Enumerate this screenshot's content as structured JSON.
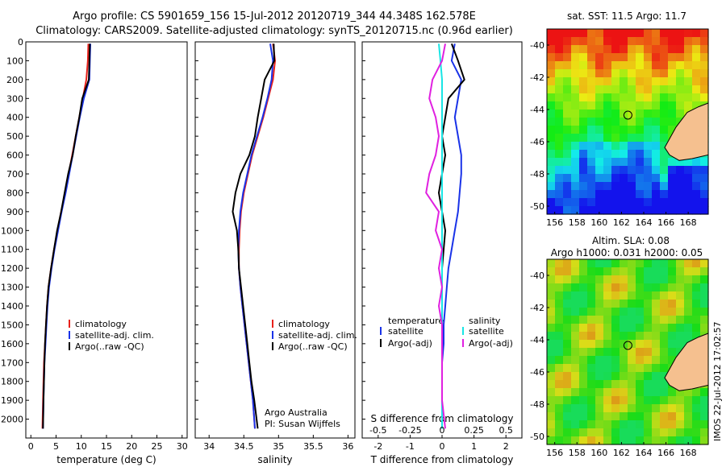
{
  "header": {
    "line1": "Argo profile: CS 5901659_156 15-Jul-2012 20120719_344 44.348S 162.578E",
    "line2": "Climatology: CARS2009. Satellite-adjusted climatology: synTS_20120715.nc (0.96d earlier)"
  },
  "right_top": {
    "title": "sat. SST: 11.5 Argo: 11.7"
  },
  "right_bottom": {
    "title1": "Altim. SLA: 0.08",
    "title2": "Argo h1000: 0.031 h2000: 0.05"
  },
  "watermark": "IMOS 22-Jul-2012 17:02:57",
  "colors": {
    "climatology": "#e8211b",
    "satellite": "#1a33e8",
    "argo": "#000000",
    "cyan": "#19e5e5",
    "magenta": "#e020e0"
  },
  "chart_data": [
    {
      "type": "line",
      "xlabel": "temperature (deg C)",
      "ylabel": "",
      "xlim": [
        -1,
        31
      ],
      "ylim": [
        2100,
        0
      ],
      "xticks": [
        0,
        5,
        10,
        15,
        20,
        25,
        30
      ],
      "yticks": [
        0,
        100,
        200,
        300,
        400,
        500,
        600,
        700,
        800,
        900,
        1000,
        1100,
        1200,
        1300,
        1400,
        1500,
        1600,
        1700,
        1800,
        1900,
        2000
      ],
      "legend": [
        "climatology",
        "satellite-adj. clim.",
        "Argo(..raw -QC)"
      ],
      "series": [
        {
          "name": "climatology",
          "color": "#e8211b",
          "x": [
            11.4,
            11.3,
            11.0,
            10.3,
            9.6,
            8.9,
            8.2,
            7.5,
            6.8,
            6.0,
            5.3,
            4.6,
            4.0,
            3.5,
            3.2,
            3.0,
            2.8,
            2.6,
            2.5,
            2.4,
            2.3
          ],
          "y": [
            10,
            100,
            200,
            300,
            400,
            500,
            600,
            700,
            800,
            900,
            1000,
            1100,
            1200,
            1300,
            1400,
            1500,
            1600,
            1700,
            1800,
            1900,
            2050
          ]
        },
        {
          "name": "satellite-adj. clim.",
          "color": "#1a33e8",
          "x": [
            11.8,
            11.7,
            11.6,
            10.5,
            9.7,
            9.0,
            8.3,
            7.6,
            6.9,
            6.1,
            5.4,
            4.7,
            4.1,
            3.6,
            3.3,
            3.1,
            2.9,
            2.7,
            2.6,
            2.5,
            2.4
          ],
          "y": [
            10,
            100,
            200,
            300,
            400,
            500,
            600,
            700,
            800,
            900,
            1000,
            1100,
            1200,
            1300,
            1400,
            1500,
            1600,
            1700,
            1800,
            1900,
            2050
          ]
        },
        {
          "name": "Argo(..raw -QC)",
          "color": "#000000",
          "x": [
            11.7,
            11.6,
            11.5,
            10.2,
            9.6,
            8.9,
            8.3,
            7.4,
            6.7,
            6.0,
            5.2,
            4.6,
            4.0,
            3.5,
            3.2,
            3.0,
            2.8,
            2.7,
            2.6,
            2.5,
            2.4
          ],
          "y": [
            10,
            100,
            200,
            300,
            400,
            500,
            600,
            700,
            800,
            900,
            1000,
            1100,
            1200,
            1300,
            1400,
            1500,
            1600,
            1700,
            1800,
            1900,
            2050
          ]
        }
      ]
    },
    {
      "type": "line",
      "xlabel": "salinity",
      "xlim": [
        33.8,
        36.1
      ],
      "ylim": [
        2100,
        0
      ],
      "xticks": [
        34,
        34.5,
        35,
        35.5,
        36
      ],
      "legend": [
        "climatology",
        "satellite-adj. clim.",
        "Argo(..raw -QC)"
      ],
      "annotation1": "Argo Australia",
      "annotation2": "PI: Susan Wijffels",
      "series": [
        {
          "name": "climatology",
          "color": "#e8211b",
          "x": [
            34.92,
            34.95,
            34.92,
            34.85,
            34.78,
            34.7,
            34.62,
            34.56,
            34.5,
            34.46,
            34.44,
            34.43,
            34.43,
            34.45,
            34.48,
            34.51,
            34.54,
            34.57,
            34.6,
            34.63,
            34.66
          ],
          "y": [
            10,
            100,
            200,
            300,
            400,
            500,
            600,
            700,
            800,
            900,
            1000,
            1100,
            1200,
            1300,
            1400,
            1500,
            1600,
            1700,
            1800,
            1900,
            2050
          ]
        },
        {
          "name": "satellite-adj. clim.",
          "color": "#1a33e8",
          "x": [
            34.88,
            34.92,
            34.9,
            34.84,
            34.77,
            34.69,
            34.61,
            34.55,
            34.49,
            34.45,
            34.43,
            34.42,
            34.43,
            34.45,
            34.48,
            34.51,
            34.54,
            34.57,
            34.6,
            34.63,
            34.66
          ],
          "y": [
            10,
            100,
            200,
            300,
            400,
            500,
            600,
            700,
            800,
            900,
            1000,
            1100,
            1200,
            1300,
            1400,
            1500,
            1600,
            1700,
            1800,
            1900,
            2050
          ]
        },
        {
          "name": "Argo(..raw -QC)",
          "color": "#000000",
          "x": [
            34.93,
            34.94,
            34.8,
            34.75,
            34.7,
            34.66,
            34.58,
            34.45,
            34.38,
            34.34,
            34.4,
            34.42,
            34.43,
            34.46,
            34.49,
            34.52,
            34.55,
            34.58,
            34.61,
            34.65,
            34.7
          ],
          "y": [
            10,
            100,
            200,
            300,
            400,
            500,
            600,
            700,
            800,
            900,
            1000,
            1100,
            1200,
            1300,
            1400,
            1500,
            1600,
            1700,
            1800,
            1900,
            2050
          ]
        }
      ]
    },
    {
      "type": "line",
      "xlabel": "T difference from climatology",
      "xlabel_top": "S difference from climatology",
      "xlim": [
        -2.5,
        2.5
      ],
      "ylim": [
        2100,
        0
      ],
      "xticks": [
        -2,
        -1,
        0,
        1,
        2
      ],
      "xticks_top": [
        "-0.5",
        "-0.25",
        "0",
        "0.25",
        "0.5"
      ],
      "legend_head": [
        "temperature",
        "salinity"
      ],
      "legend": [
        "satellite",
        "Argo(-adj)",
        "satellite",
        "Argo(-adj)"
      ],
      "series": [
        {
          "name": "temperature satellite",
          "color": "#1a33e8",
          "x": [
            0.4,
            0.3,
            0.6,
            0.5,
            0.4,
            0.5,
            0.6,
            0.6,
            0.55,
            0.5,
            0.4,
            0.3,
            0.2,
            0.15,
            0.1,
            0.05,
            0.05,
            0.0,
            0.0,
            0.0,
            0.0
          ],
          "y": [
            10,
            100,
            200,
            300,
            400,
            500,
            600,
            700,
            800,
            900,
            1000,
            1100,
            1200,
            1300,
            1400,
            1500,
            1600,
            1700,
            1800,
            1900,
            2050
          ]
        },
        {
          "name": "temperature Argo(-adj)",
          "color": "#000000",
          "x": [
            0.3,
            0.5,
            0.7,
            0.2,
            0.1,
            0.0,
            0.1,
            0.0,
            -0.1,
            0.0,
            0.1,
            0.05,
            0.0,
            0.0,
            0.0,
            0.0,
            0.0,
            0.0,
            0.0,
            0.0,
            0.0
          ],
          "y": [
            10,
            100,
            200,
            300,
            400,
            500,
            600,
            700,
            800,
            900,
            1000,
            1100,
            1200,
            1300,
            1400,
            1500,
            1600,
            1700,
            1800,
            1900,
            2050
          ]
        },
        {
          "name": "salinity satellite",
          "color": "#19e5e5",
          "x": [
            -0.1,
            -0.05,
            0.0,
            0.0,
            0.0,
            0.0,
            0.0,
            0.0,
            0.0,
            0.0,
            0.0,
            0.0,
            0.0,
            0.0,
            0.0,
            0.0,
            0.0,
            0.0,
            0.0,
            0.0,
            0.0
          ],
          "y": [
            10,
            100,
            200,
            300,
            400,
            500,
            600,
            700,
            800,
            900,
            1000,
            1100,
            1200,
            1300,
            1400,
            1500,
            1600,
            1700,
            1800,
            1900,
            2050
          ]
        },
        {
          "name": "salinity Argo(-adj)",
          "color": "#e020e0",
          "x": [
            0.1,
            0.0,
            -0.3,
            -0.4,
            -0.2,
            -0.1,
            -0.2,
            -0.4,
            -0.5,
            -0.1,
            -0.2,
            0.0,
            -0.1,
            0.0,
            -0.1,
            0.0,
            0.0,
            0.0,
            0.0,
            0.0,
            0.1
          ],
          "y": [
            10,
            100,
            200,
            300,
            400,
            500,
            600,
            700,
            800,
            900,
            1000,
            1100,
            1200,
            1300,
            1400,
            1500,
            1600,
            1700,
            1800,
            1900,
            2050
          ]
        }
      ]
    },
    {
      "type": "heatmap",
      "title": "sat. SST: 11.5 Argo: 11.7",
      "xticks": [
        156,
        158,
        160,
        162,
        164,
        166,
        168
      ],
      "yticks": [
        -40,
        -42,
        -44,
        -46,
        -48,
        -50
      ],
      "marker": {
        "lon": 162.578,
        "lat": -44.348
      }
    },
    {
      "type": "heatmap",
      "title": "Altim. SLA: 0.08",
      "subtitle": "Argo h1000: 0.031 h2000: 0.05",
      "xticks": [
        156,
        158,
        160,
        162,
        164,
        166,
        168
      ],
      "yticks": [
        -40,
        -42,
        -44,
        -46,
        -48,
        -50
      ],
      "marker": {
        "lon": 162.578,
        "lat": -44.348
      }
    }
  ]
}
